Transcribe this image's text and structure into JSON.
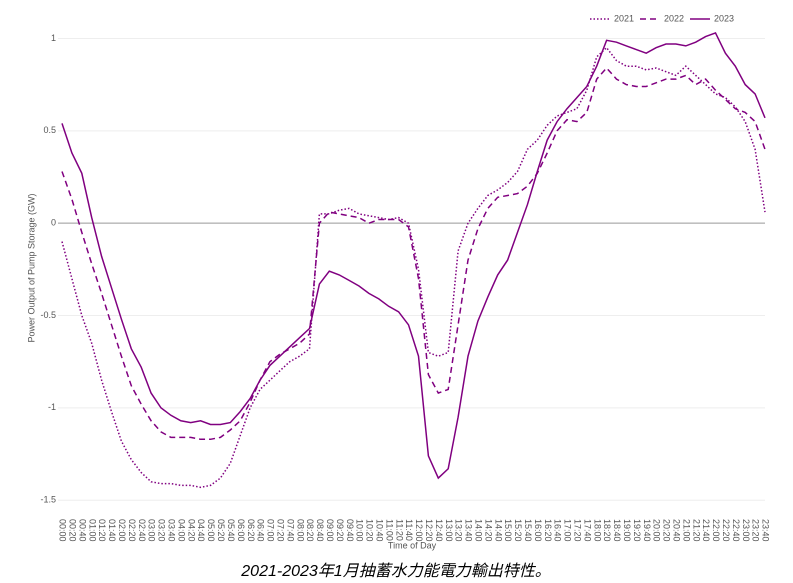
{
  "chart_data": {
    "type": "line",
    "ylabel": "Power Output of Pump Storage (GW)",
    "xlabel": "Time of Day",
    "caption": "2021-2023年1月抽蓄水力能電力輸出特性。",
    "ylim": [
      -1.58,
      1.1
    ],
    "yticks": [
      -1.5,
      -1,
      -0.5,
      0,
      0.5,
      1
    ],
    "grid": true,
    "legend": "top-right",
    "categories": [
      "00:00",
      "00:20",
      "00:40",
      "01:00",
      "01:20",
      "01:40",
      "02:00",
      "02:20",
      "02:40",
      "03:00",
      "03:20",
      "03:40",
      "04:00",
      "04:20",
      "04:40",
      "05:00",
      "05:20",
      "05:40",
      "06:00",
      "06:20",
      "06:40",
      "07:00",
      "07:20",
      "07:40",
      "08:00",
      "08:20",
      "08:40",
      "09:00",
      "09:20",
      "09:40",
      "10:00",
      "10:20",
      "10:40",
      "11:00",
      "11:20",
      "11:40",
      "12:00",
      "12:20",
      "12:40",
      "13:00",
      "13:20",
      "13:40",
      "14:00",
      "14:20",
      "14:40",
      "15:00",
      "15:20",
      "15:40",
      "16:00",
      "16:20",
      "16:40",
      "17:00",
      "17:20",
      "17:40",
      "18:00",
      "18:20",
      "18:40",
      "19:00",
      "19:20",
      "19:40",
      "20:00",
      "20:20",
      "20:40",
      "21:00",
      "21:20",
      "21:40",
      "22:00",
      "22:20",
      "22:40",
      "23:00",
      "23:20",
      "23:40"
    ],
    "series": [
      {
        "name": "2021",
        "color": "#800080",
        "dash": "dot",
        "values": [
          -0.1,
          -0.3,
          -0.5,
          -0.65,
          -0.85,
          -1.02,
          -1.18,
          -1.28,
          -1.35,
          -1.4,
          -1.41,
          -1.41,
          -1.42,
          -1.42,
          -1.43,
          -1.42,
          -1.38,
          -1.3,
          -1.15,
          -1.0,
          -0.9,
          -0.85,
          -0.8,
          -0.75,
          -0.72,
          -0.68,
          0.05,
          0.05,
          0.07,
          0.08,
          0.05,
          0.04,
          0.03,
          0.02,
          0.03,
          0.0,
          -0.25,
          -0.7,
          -0.72,
          -0.7,
          -0.15,
          0.0,
          0.08,
          0.15,
          0.18,
          0.22,
          0.28,
          0.4,
          0.45,
          0.53,
          0.58,
          0.6,
          0.62,
          0.72,
          0.9,
          0.95,
          0.88,
          0.85,
          0.85,
          0.83,
          0.84,
          0.82,
          0.8,
          0.85,
          0.8,
          0.75,
          0.7,
          0.68,
          0.63,
          0.55,
          0.4,
          0.06
        ]
      },
      {
        "name": "2022",
        "color": "#800080",
        "dash": "dash",
        "values": [
          0.28,
          0.13,
          -0.05,
          -0.22,
          -0.38,
          -0.55,
          -0.72,
          -0.88,
          -0.98,
          -1.07,
          -1.13,
          -1.16,
          -1.16,
          -1.16,
          -1.17,
          -1.17,
          -1.16,
          -1.12,
          -1.07,
          -0.97,
          -0.85,
          -0.75,
          -0.71,
          -0.68,
          -0.65,
          -0.6,
          0.0,
          0.06,
          0.05,
          0.04,
          0.03,
          0.0,
          0.02,
          0.02,
          0.02,
          -0.02,
          -0.3,
          -0.82,
          -0.92,
          -0.9,
          -0.55,
          -0.2,
          -0.03,
          0.08,
          0.14,
          0.15,
          0.16,
          0.2,
          0.27,
          0.38,
          0.5,
          0.56,
          0.55,
          0.6,
          0.78,
          0.84,
          0.78,
          0.75,
          0.74,
          0.74,
          0.76,
          0.78,
          0.78,
          0.8,
          0.75,
          0.78,
          0.72,
          0.67,
          0.62,
          0.6,
          0.55,
          0.4
        ]
      },
      {
        "name": "2023",
        "color": "#800080",
        "dash": "solid",
        "values": [
          0.54,
          0.38,
          0.27,
          0.03,
          -0.18,
          -0.35,
          -0.52,
          -0.68,
          -0.78,
          -0.92,
          -1.0,
          -1.04,
          -1.07,
          -1.08,
          -1.07,
          -1.09,
          -1.09,
          -1.08,
          -1.02,
          -0.95,
          -0.85,
          -0.77,
          -0.72,
          -0.67,
          -0.62,
          -0.57,
          -0.33,
          -0.26,
          -0.28,
          -0.31,
          -0.34,
          -0.38,
          -0.41,
          -0.45,
          -0.48,
          -0.55,
          -0.72,
          -1.26,
          -1.38,
          -1.33,
          -1.05,
          -0.72,
          -0.53,
          -0.4,
          -0.28,
          -0.2,
          -0.05,
          0.1,
          0.28,
          0.45,
          0.55,
          0.62,
          0.68,
          0.74,
          0.85,
          0.99,
          0.98,
          0.96,
          0.94,
          0.92,
          0.95,
          0.97,
          0.97,
          0.96,
          0.98,
          1.01,
          1.03,
          0.92,
          0.85,
          0.75,
          0.7,
          0.57
        ]
      }
    ]
  }
}
